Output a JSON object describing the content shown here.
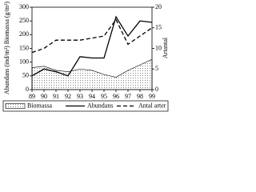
{
  "chart_data": {
    "type": "line",
    "x": [
      89,
      90,
      91,
      92,
      93,
      94,
      95,
      96,
      97,
      98,
      99
    ],
    "xlim": [
      89,
      99
    ],
    "xticks": [
      89,
      90,
      91,
      92,
      93,
      94,
      95,
      96,
      97,
      98,
      99
    ],
    "ylabel": "Abundans (ind/m²) Biomassa (g/m²)",
    "y2label": "Artantal",
    "ylim": [
      0,
      300
    ],
    "yticks": [
      0,
      50,
      100,
      150,
      200,
      250,
      300
    ],
    "y2lim": [
      0,
      20
    ],
    "y2ticks": [
      0,
      5,
      10,
      15,
      20
    ],
    "series": [
      {
        "name": "Biomassa",
        "style": "area",
        "color": "#000000",
        "values": [
          80,
          85,
          70,
          65,
          75,
          70,
          55,
          45,
          70,
          90,
          110
        ]
      },
      {
        "name": "Abundans",
        "style": "solid",
        "color": "#000000",
        "values": [
          50,
          75,
          65,
          50,
          120,
          115,
          115,
          265,
          195,
          250,
          245
        ]
      },
      {
        "name": "Antal arter",
        "style": "dashed",
        "color": "#000000",
        "axis": "y2",
        "values": [
          9,
          10,
          12,
          12,
          12,
          12.5,
          13,
          17,
          11,
          13,
          15
        ]
      }
    ]
  }
}
